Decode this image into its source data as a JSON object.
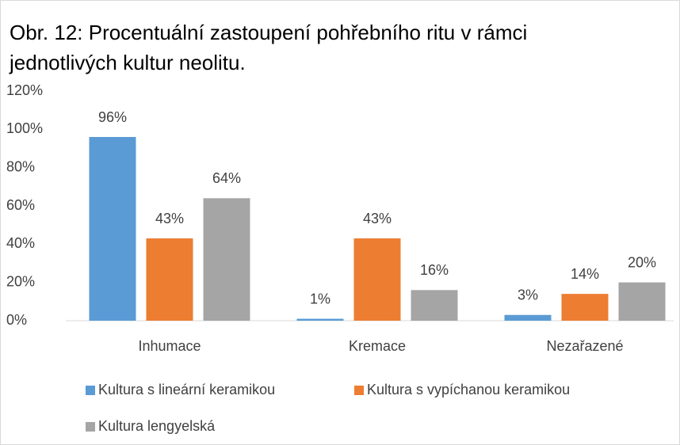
{
  "chart_data": {
    "type": "bar",
    "title": "Obr. 12: Procentuální zastoupení pohřebního ritu v rámci jednotlivých kultur neolitu.",
    "categories": [
      "Inhumace",
      "Kremace",
      "Nezařazené"
    ],
    "series": [
      {
        "name": "Kultura s lineární keramikou",
        "color": "#5b9bd5",
        "values": [
          96,
          1,
          3
        ],
        "value_labels": [
          "96%",
          "1%",
          "3%"
        ]
      },
      {
        "name": "Kultura s vypíchanou keramikou",
        "color": "#ed7d31",
        "values": [
          43,
          43,
          14
        ],
        "value_labels": [
          "43%",
          "43%",
          "14%"
        ]
      },
      {
        "name": "Kultura lengyelská",
        "color": "#a5a5a5",
        "values": [
          64,
          16,
          20
        ],
        "value_labels": [
          "64%",
          "16%",
          "20%"
        ]
      }
    ],
    "ylim": [
      0,
      120
    ],
    "yticks": [
      {
        "value": 0,
        "label": "0%"
      },
      {
        "value": 20,
        "label": "20%"
      },
      {
        "value": 40,
        "label": "40%"
      },
      {
        "value": 60,
        "label": "60%"
      },
      {
        "value": 80,
        "label": "80%"
      },
      {
        "value": 100,
        "label": "100%"
      },
      {
        "value": 120,
        "label": "120%"
      }
    ],
    "grid": false,
    "legend": "bottom"
  }
}
